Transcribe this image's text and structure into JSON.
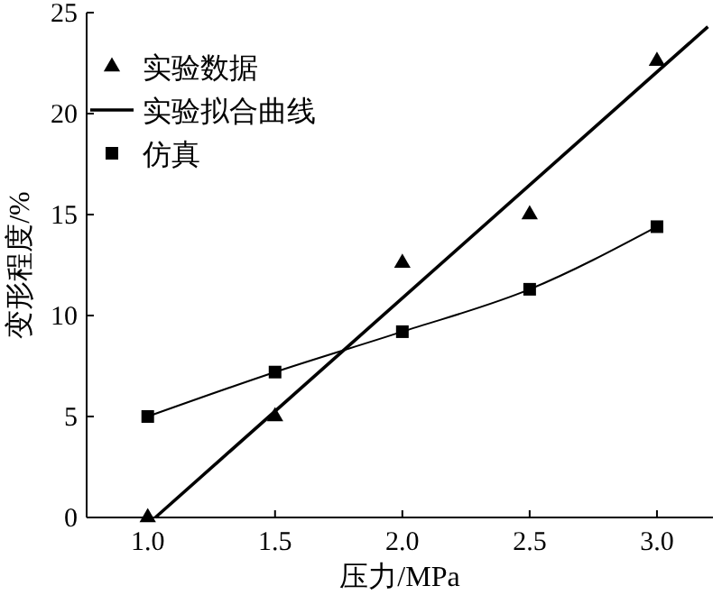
{
  "chart_data": {
    "type": "scatter",
    "xlabel": "压力/MPa",
    "ylabel": "变形程度/%",
    "xlim": [
      0.76,
      3.22
    ],
    "ylim": [
      0,
      25
    ],
    "xticks": [
      {
        "value": 1,
        "label": "1.0"
      },
      {
        "value": 1.5,
        "label": "1.5"
      },
      {
        "value": 2,
        "label": "2.0"
      },
      {
        "value": 2.5,
        "label": "2.5"
      },
      {
        "value": 3,
        "label": "3.0"
      }
    ],
    "yticks": [
      0,
      5,
      10,
      15,
      20,
      25
    ],
    "grid": false,
    "legend": "top left",
    "series": [
      {
        "name": "实验数据",
        "marker": "triangle",
        "color": "#000000",
        "x": [
          1.0,
          1.5,
          2.0,
          2.5,
          3.0
        ],
        "values": [
          0,
          5.0,
          12.6,
          15.0,
          22.6
        ]
      },
      {
        "name": "实验拟合曲线",
        "type": "line",
        "marker": "none",
        "color": "#000000",
        "x": [
          1.03,
          3.2
        ],
        "values": [
          0,
          24.3
        ]
      },
      {
        "name": "仿真",
        "type": "line",
        "marker": "square",
        "color": "#000000",
        "x": [
          1.0,
          1.5,
          2.0,
          2.5,
          3.0
        ],
        "values": [
          5.0,
          7.2,
          9.2,
          11.3,
          14.4
        ]
      }
    ]
  }
}
